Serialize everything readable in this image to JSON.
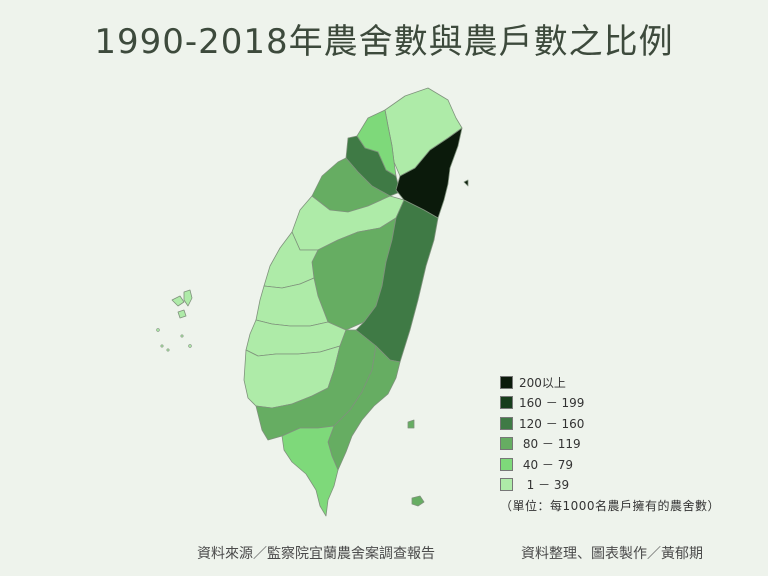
{
  "title": "1990-2018年農舍數與農戶數之比例",
  "legend": {
    "items": [
      {
        "label": "200以上",
        "color": "#0b1a0b"
      },
      {
        "label": "160 － 199",
        "color": "#173d1c"
      },
      {
        "label": "120 － 160",
        "color": "#3f7a45"
      },
      {
        "label": " 80 － 119",
        "color": "#66ad62"
      },
      {
        "label": " 40 － 79",
        "color": "#7ed97a"
      },
      {
        "label": "  1 － 39",
        "color": "#aeeba8"
      }
    ],
    "note": "（單位：每1000名農戶擁有的農舍數）"
  },
  "footer": {
    "source": "資料來源／監察院宜蘭農舍案調查報告",
    "credit": "資料整理、圖表製作／黃郁期"
  },
  "regions": [
    {
      "name": "新北",
      "class": " 1 － 39"
    },
    {
      "name": "桃園",
      "class": " 40 － 79"
    },
    {
      "name": "新竹",
      "class": "120 － 160"
    },
    {
      "name": "苗栗",
      "class": " 80 － 119"
    },
    {
      "name": "台中",
      "class": "  1 － 39"
    },
    {
      "name": "南投",
      "class": " 80 － 119"
    },
    {
      "name": "宜蘭",
      "class": "200以上"
    },
    {
      "name": "花蓮",
      "class": "120 － 160"
    },
    {
      "name": "台東",
      "class": " 80 － 119"
    },
    {
      "name": "高雄",
      "class": " 80 － 119"
    },
    {
      "name": "屏東",
      "class": " 40 － 79"
    },
    {
      "name": "彰化",
      "class": "  1 － 39"
    },
    {
      "name": "雲林",
      "class": "  1 － 39"
    },
    {
      "name": "嘉義",
      "class": "  1 － 39"
    },
    {
      "name": "台南",
      "class": "  1 － 39"
    }
  ]
}
